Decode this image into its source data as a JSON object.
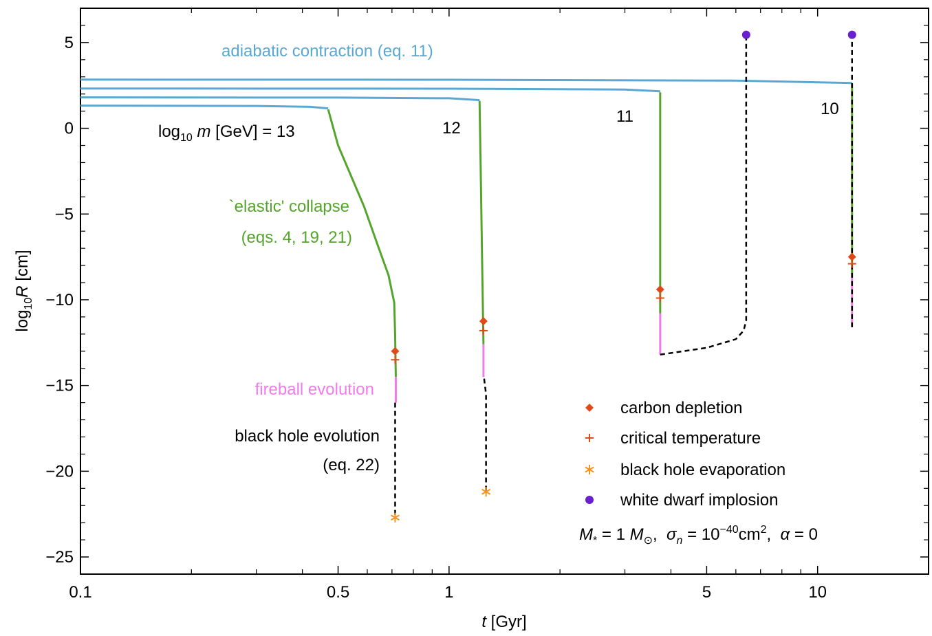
{
  "chart_data": {
    "type": "line",
    "xscale": "log",
    "xlim": [
      0.1,
      20
    ],
    "ylim": [
      -26,
      7
    ],
    "xticks": [
      0.1,
      0.5,
      1,
      5,
      10
    ],
    "xminorticks": [
      0.2,
      0.3,
      0.4,
      0.6,
      0.7,
      0.8,
      0.9,
      2,
      3,
      4,
      6,
      7,
      8,
      9
    ],
    "yticks": [
      {
        "value": -25,
        "label": "−25"
      },
      {
        "value": -20,
        "label": "−20"
      },
      {
        "value": -15,
        "label": "−15"
      },
      {
        "value": -10,
        "label": "−10"
      },
      {
        "value": -5,
        "label": "−5"
      },
      0,
      5
    ],
    "yminorticks": [
      -24,
      -23,
      -22,
      -21,
      -19,
      -18,
      -17,
      -16,
      -14,
      -13,
      -12,
      -11,
      -9,
      -8,
      -7,
      -6,
      -4,
      -3,
      -2,
      -1,
      1,
      2,
      3,
      4,
      6
    ],
    "xlabel": [
      {
        "text": "t",
        "style": "i"
      },
      {
        "text": " [Gyr]"
      }
    ],
    "ylabel": [
      {
        "text": "log"
      },
      {
        "text": "10",
        "style": "sub"
      },
      {
        "text": "R",
        "style": "i"
      },
      {
        "text": " [cm]"
      }
    ],
    "curves": [
      {
        "color": "#5aa8d2",
        "dashed": false,
        "x": [
          0.1,
          0.3,
          0.42,
          0.47
        ],
        "y": [
          1.32,
          1.3,
          1.25,
          1.16
        ]
      },
      {
        "color": "#5aa8d2",
        "dashed": false,
        "x": [
          0.1,
          0.5,
          1.0,
          1.21
        ],
        "y": [
          1.8,
          1.79,
          1.75,
          1.64
        ]
      },
      {
        "color": "#5aa8d2",
        "dashed": false,
        "x": [
          0.1,
          1,
          3,
          3.74
        ],
        "y": [
          2.32,
          2.31,
          2.26,
          2.16
        ]
      },
      {
        "color": "#5aa8d2",
        "dashed": false,
        "x": [
          0.1,
          1,
          6,
          12.4
        ],
        "y": [
          2.84,
          2.83,
          2.78,
          2.64
        ]
      },
      {
        "color": "#55a52c",
        "dashed": false,
        "x": [
          0.47,
          0.5,
          0.588,
          0.64,
          0.685,
          0.71,
          0.714,
          0.717
        ],
        "y": [
          1.1,
          -1,
          -4.56,
          -6.8,
          -8.56,
          -10.16,
          -12,
          -14.5
        ]
      },
      {
        "color": "#55a52c",
        "dashed": false,
        "x": [
          1.21,
          1.22,
          1.23,
          1.24
        ],
        "y": [
          1.6,
          -3,
          -8,
          -12.6
        ]
      },
      {
        "color": "#55a52c",
        "dashed": false,
        "x": [
          3.74,
          3.74
        ],
        "y": [
          2.1,
          -10.8
        ]
      },
      {
        "color": "#55a52c",
        "dashed": false,
        "x": [
          12.4,
          12.4
        ],
        "y": [
          2.6,
          -8.7
        ]
      },
      {
        "color": "#f07cec",
        "dashed": false,
        "x": [
          0.717,
          0.717
        ],
        "y": [
          -14.5,
          -16
        ]
      },
      {
        "color": "#f07cec",
        "dashed": false,
        "x": [
          1.24,
          1.24
        ],
        "y": [
          -12.6,
          -14.5
        ]
      },
      {
        "color": "#f07cec",
        "dashed": false,
        "x": [
          3.74,
          3.74
        ],
        "y": [
          -10.8,
          -13.2
        ]
      },
      {
        "color": "#f07cec",
        "dashed": false,
        "x": [
          12.4,
          12.4
        ],
        "y": [
          -8.7,
          -11.6
        ]
      },
      {
        "color": "#000000",
        "dashed": true,
        "x": [
          0.714,
          0.714
        ],
        "y": [
          -16,
          -22.7
        ]
      },
      {
        "color": "#000000",
        "dashed": true,
        "x": [
          1.245,
          1.26,
          1.26
        ],
        "y": [
          -14.6,
          -15.5,
          -21.2
        ]
      },
      {
        "color": "#000000",
        "dashed": true,
        "x": [
          3.74,
          5,
          6,
          6.3,
          6.4,
          6.4
        ],
        "y": [
          -13.2,
          -12.8,
          -12.3,
          -11.8,
          -11.2,
          5.45
        ]
      },
      {
        "color": "#000000",
        "dashed": true,
        "x": [
          12.4,
          12.4
        ],
        "y": [
          -11.6,
          5.45
        ]
      }
    ],
    "series": [
      {
        "name": "carbon depletion",
        "color": "#e04a1a",
        "marker": "diamond",
        "x": [
          0.714,
          1.24,
          3.74,
          12.4
        ],
        "y": [
          -13,
          -11.25,
          -9.4,
          -7.5
        ]
      },
      {
        "name": "critical temperature",
        "color": "#e04a1a",
        "marker": "plus",
        "x": [
          0.714,
          1.24,
          3.74,
          12.4
        ],
        "y": [
          -13.5,
          -11.8,
          -9.9,
          -7.9
        ]
      },
      {
        "name": "black hole evaporation",
        "color": "#f7941d",
        "marker": "star",
        "x": [
          0.714,
          1.26
        ],
        "y": [
          -22.7,
          -21.2
        ]
      },
      {
        "name": "white dwarf implosion",
        "color": "#6a1fd0",
        "marker": "circle",
        "x": [
          6.4,
          12.4
        ],
        "y": [
          5.45,
          5.45
        ]
      }
    ],
    "annotations": [
      {
        "color": "#5aa8d2",
        "parts": [
          {
            "text": "adiabatic contraction (eq. 11)"
          }
        ]
      },
      {
        "color": "#000000",
        "parts": [
          {
            "text": "log"
          },
          {
            "text": "10",
            "style": "sub"
          },
          {
            "text": " m",
            "style": "i"
          },
          {
            "text": " [GeV] = 13"
          }
        ]
      },
      {
        "color": "#000000",
        "parts": [
          {
            "text": "12"
          }
        ]
      },
      {
        "color": "#000000",
        "parts": [
          {
            "text": "11"
          }
        ]
      },
      {
        "color": "#000000",
        "parts": [
          {
            "text": "10"
          }
        ]
      },
      {
        "color": "#55a52c",
        "parts": [
          {
            "text": "`elastic' collapse"
          }
        ]
      },
      {
        "color": "#55a52c",
        "parts": [
          {
            "text": "(eqs. 4, 19, 21)"
          }
        ]
      },
      {
        "color": "#f07cec",
        "parts": [
          {
            "text": "fireball evolution"
          }
        ]
      },
      {
        "color": "#000000",
        "parts": [
          {
            "text": "black hole evolution"
          }
        ]
      },
      {
        "color": "#000000",
        "parts": [
          {
            "text": "(eq. 22)"
          }
        ]
      },
      {
        "color": "#000000",
        "parts": [
          {
            "text": "M",
            "style": "i"
          },
          {
            "text": "*",
            "style": "sub"
          },
          {
            "text": " = 1 "
          },
          {
            "text": "M",
            "style": "i"
          },
          {
            "text": "⊙",
            "style": "sub"
          },
          {
            "text": ",  "
          },
          {
            "text": "σ",
            "style": "i"
          },
          {
            "text": "n",
            "style": "isub"
          },
          {
            "text": " = 10"
          },
          {
            "text": "−40",
            "style": "sup"
          },
          {
            "text": "cm"
          },
          {
            "text": "2",
            "style": "sup"
          },
          {
            "text": ",  "
          },
          {
            "text": "α",
            "style": "i"
          },
          {
            "text": " = 0"
          }
        ]
      }
    ]
  }
}
